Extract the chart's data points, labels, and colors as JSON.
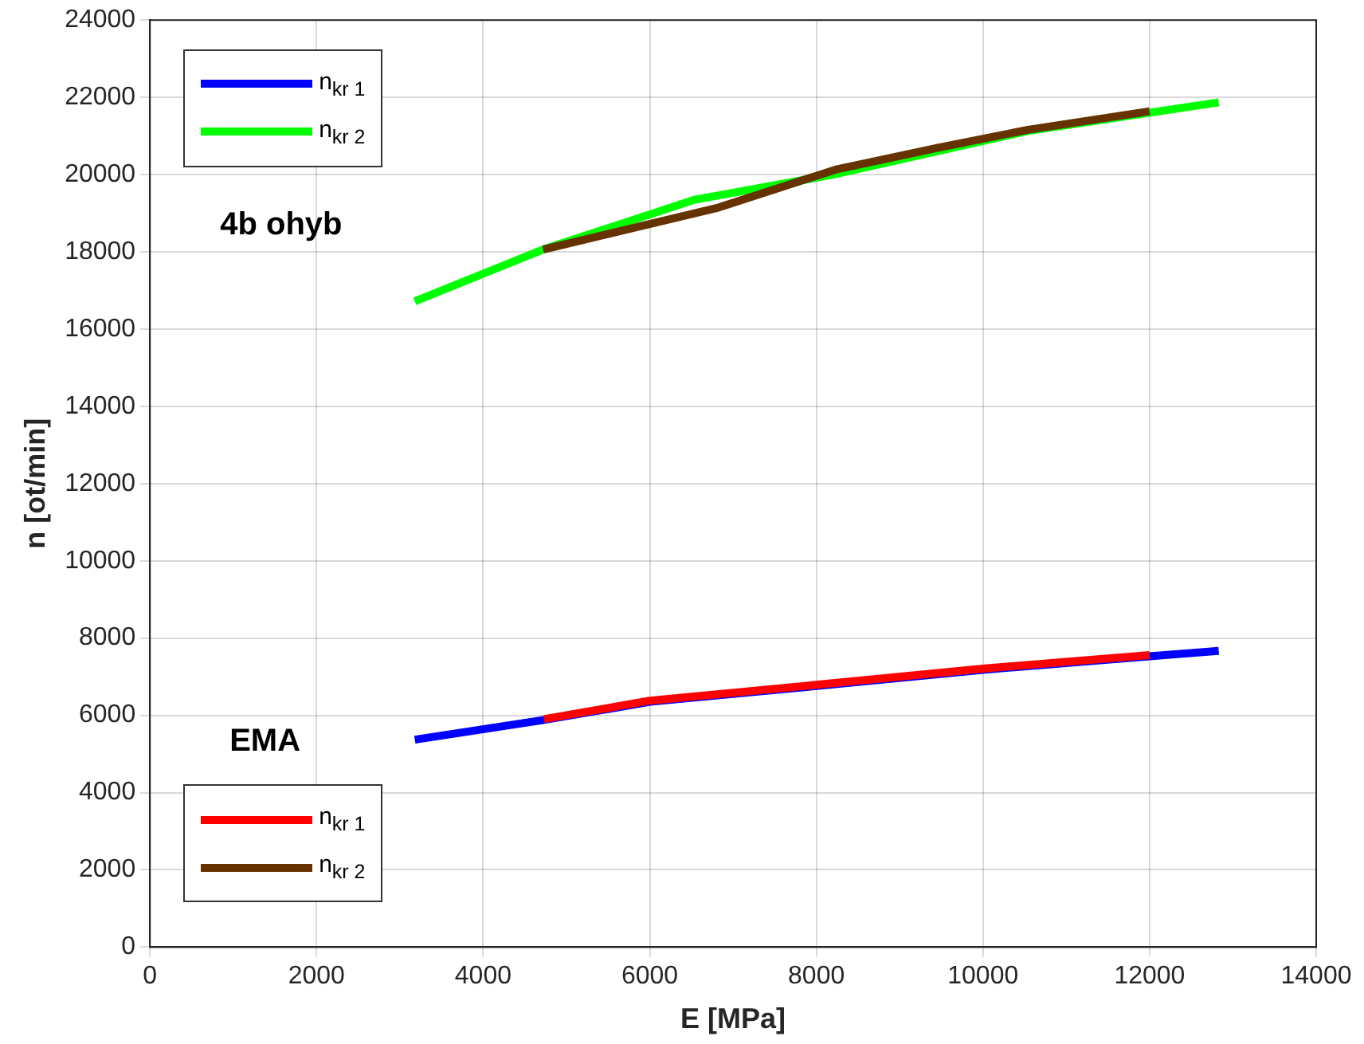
{
  "chart_data": {
    "type": "line",
    "xlabel": "E [MPa]",
    "ylabel": "n [ot/min]",
    "xlim": [
      0,
      14000
    ],
    "xticks": [
      0,
      2000,
      4000,
      6000,
      8000,
      10000,
      12000,
      14000
    ],
    "ylim": [
      0,
      24000
    ],
    "yticks": [
      0,
      2000,
      4000,
      6000,
      8000,
      10000,
      12000,
      14000,
      16000,
      18000,
      20000,
      22000,
      24000
    ],
    "grid": true,
    "legend": "top left",
    "marker": "none",
    "line_style": "solid",
    "annotations": [
      "4b ohyb",
      "EMA"
    ],
    "series": [
      {
        "name": "n$_{kr 1}$",
        "color": "#0000ff",
        "x": [
          3180,
          4730,
          6000,
          8000,
          10000,
          12000,
          12830
        ],
        "values": [
          5370,
          5880,
          6350,
          6760,
          7180,
          7530,
          7670
        ]
      },
      {
        "name": "n$_{kr 2}$",
        "color": "#00ff00",
        "x": [
          3180,
          4720,
          6540,
          8200,
          10540,
          12830
        ],
        "values": [
          16720,
          18060,
          19350,
          20000,
          21130,
          21870
        ]
      },
      {
        "name": "n$_{kr 1}$",
        "color": "#ff0000",
        "x": [
          4730,
          6000,
          8000,
          10000,
          12000
        ],
        "values": [
          5900,
          6380,
          6790,
          7210,
          7560
        ]
      },
      {
        "name": "n$_{kr 2}$",
        "color": "#663300",
        "x": [
          4720,
          6800,
          8250,
          9450,
          10540,
          12000
        ],
        "values": [
          18060,
          19130,
          20140,
          20690,
          21160,
          21640
        ]
      }
    ]
  }
}
